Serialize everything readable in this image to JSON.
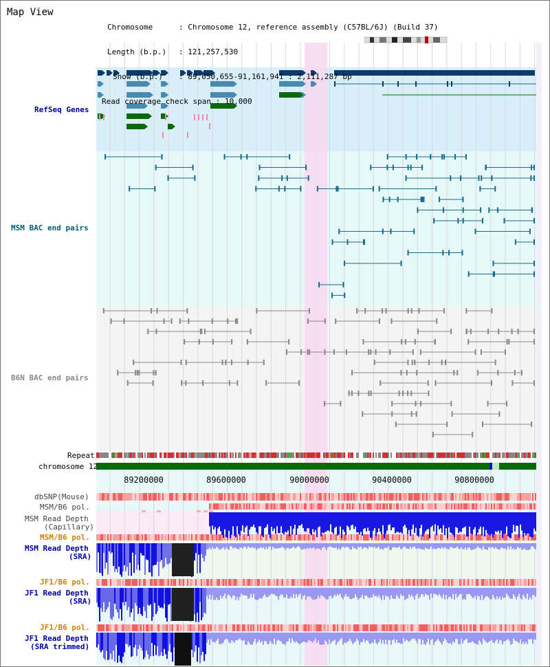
{
  "app": {
    "title": "Map View"
  },
  "info": {
    "chromosome_label": "Chromosome",
    "chromosome_value": "Chromosome 12, reference assembly (C57BL/6J) (Build 37)",
    "length_label": "Length (b.p.)",
    "length_value": "121,257,530",
    "show_label": "Show (b.p.)",
    "show_value": "89,050,655-91,161,941 : 2,111,287 bp",
    "coverage_label": "Read coverage check span",
    "coverage_value": "10,000"
  },
  "tracks": {
    "refseq": "RefSeq Genes",
    "msm_bac": "MSM BAC end pairs",
    "b6n_bac": "B6N BAC end pairs",
    "repeat": "Repeat",
    "chromosome": "chromosome 12",
    "dbsnp": "dbSNP(Mouse)",
    "msm_b6_pol_1": "MSM/B6 pol.",
    "msm_read_depth_cap_1": "MSM Read Depth",
    "msm_read_depth_cap_2": "(Capillary)",
    "msm_b6_pol_2": "MSM/B6 pol.",
    "msm_read_depth_sra_1": "MSM Read Depth",
    "msm_read_depth_sra_2": "(SRA)",
    "jf1_b6_pol_1": "JF1/B6 pol.",
    "jf1_read_depth_sra_1": "JF1 Read Depth",
    "jf1_read_depth_sra_2": "(SRA)",
    "jf1_b6_pol_2": "JF1/B6 pol.",
    "jf1_read_depth_trim_1": "JF1 Read Depth",
    "jf1_read_depth_trim_2": "(SRA trimmed)"
  },
  "axis": {
    "ticks": [
      "89200000",
      "89600000",
      "90000000",
      "90400000",
      "90800000"
    ]
  },
  "colors": {
    "refseq_bg": "#d8eef8",
    "msm_bg": "#e6f8f8",
    "b6n_bg": "#f4f4f4",
    "highlight": "#f8d8f0",
    "gene_dark": "#0c3a6a",
    "gene_mid": "#4a8ab0",
    "gene_green": "#0a6a0a",
    "msm_line": "#1a6a8a",
    "b6n_line": "#888888",
    "depth_blue": "#1010e0",
    "depth_light": "#9898f0",
    "label_blue": "#0000a0",
    "label_orange": "#d08000",
    "label_teal": "#006070"
  }
}
